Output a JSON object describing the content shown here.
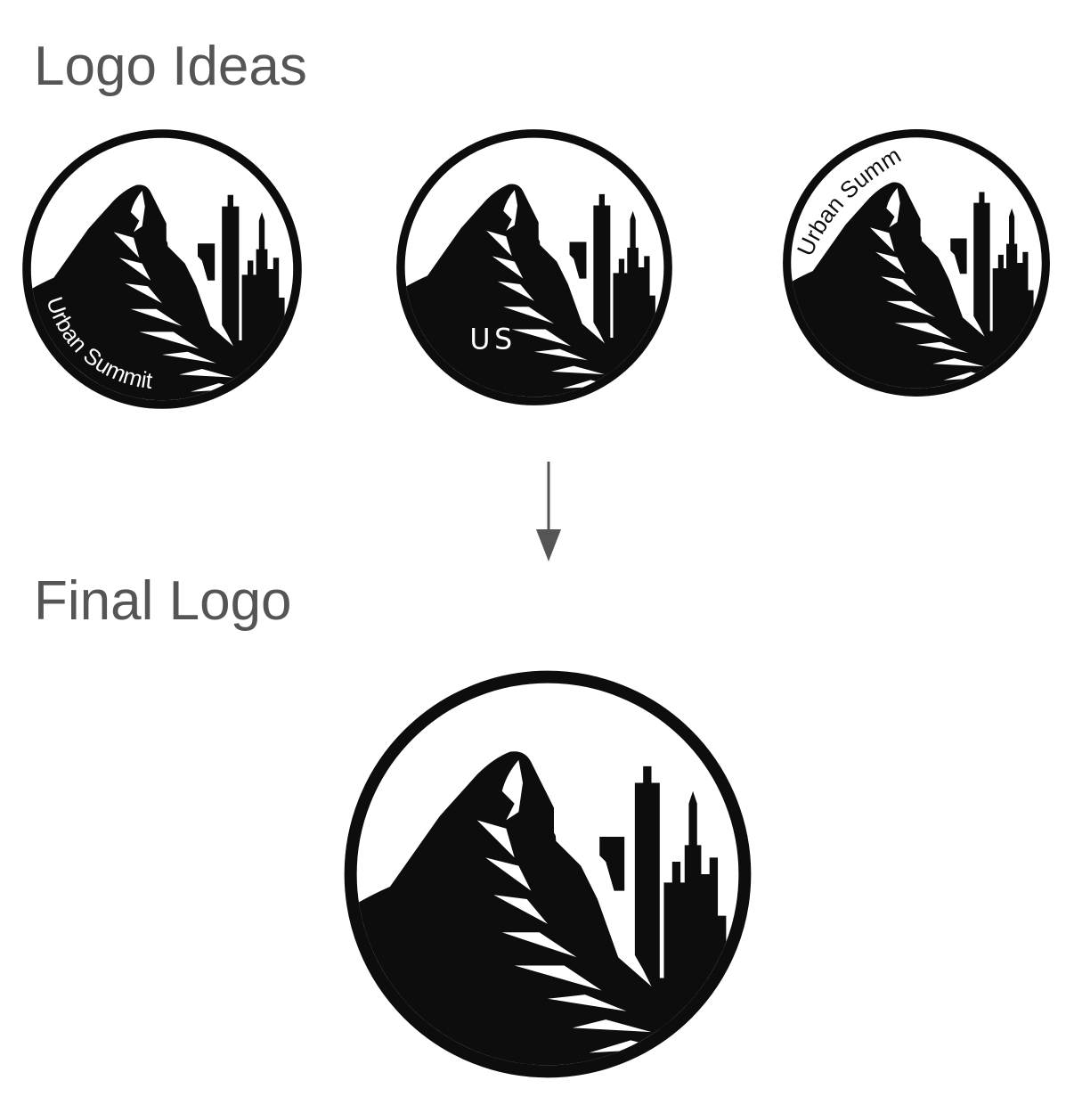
{
  "headings": {
    "ideas": "Logo Ideas",
    "final": "Final Logo"
  },
  "logos": {
    "idea_1": {
      "text": "Urban Summit"
    },
    "idea_2": {
      "text": "US"
    },
    "idea_3": {
      "text": "Urban Summit"
    }
  },
  "colors": {
    "heading": "#555555",
    "ink": "#0d0d0d",
    "arrow": "#555555",
    "background": "#ffffff"
  },
  "icons": {
    "arrow": "arrow-down-icon",
    "logo": "mountain-city-icon"
  }
}
